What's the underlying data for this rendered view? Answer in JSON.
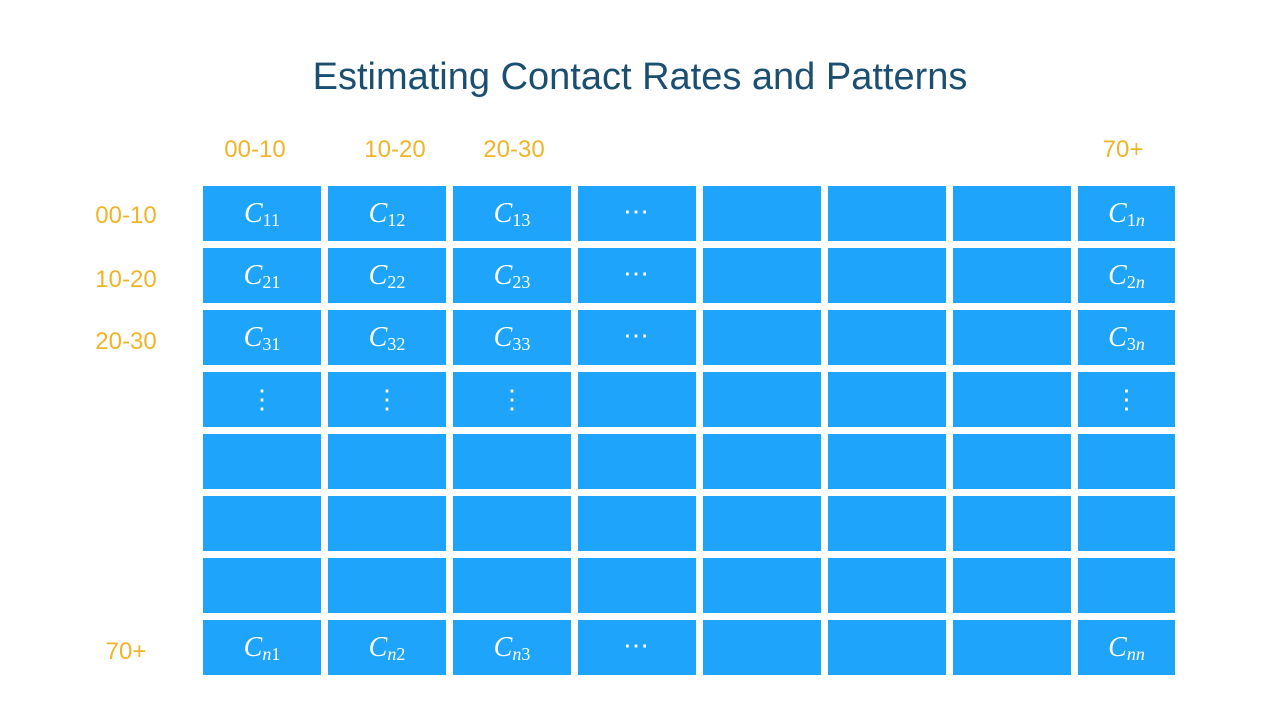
{
  "title": "Estimating Contact Rates and Patterns",
  "column_labels": [
    "00-10",
    "10-20",
    "20-30",
    "70+"
  ],
  "row_labels": [
    "00-10",
    "10-20",
    "20-30",
    "70+"
  ],
  "matrix_symbol": "C",
  "matrix": [
    [
      {
        "sub": "11"
      },
      {
        "sub": "12"
      },
      {
        "sub": "13"
      },
      {
        "glyph": "⋯"
      },
      {},
      {},
      {},
      {
        "sub": "1",
        "sub_italic": "n"
      }
    ],
    [
      {
        "sub": "21"
      },
      {
        "sub": "22"
      },
      {
        "sub": "23"
      },
      {
        "glyph": "⋯"
      },
      {},
      {},
      {},
      {
        "sub": "2",
        "sub_italic": "n"
      }
    ],
    [
      {
        "sub": "31"
      },
      {
        "sub": "32"
      },
      {
        "sub": "33"
      },
      {
        "glyph": "⋯"
      },
      {},
      {},
      {},
      {
        "sub": "3",
        "sub_italic": "n"
      }
    ],
    [
      {
        "glyph": "⋮"
      },
      {
        "glyph": "⋮"
      },
      {
        "glyph": "⋮"
      },
      {},
      {},
      {},
      {},
      {
        "glyph": "⋮"
      }
    ],
    [
      {},
      {},
      {},
      {},
      {},
      {},
      {},
      {}
    ],
    [
      {},
      {},
      {},
      {},
      {},
      {},
      {},
      {}
    ],
    [
      {},
      {},
      {},
      {},
      {},
      {},
      {},
      {}
    ],
    [
      {
        "sub_italic": "n",
        "sub": "1"
      },
      {
        "sub_italic": "n",
        "sub": "2"
      },
      {
        "sub_italic": "n",
        "sub": "3"
      },
      {
        "glyph": "⋯"
      },
      {},
      {},
      {},
      {
        "sub_italic": "nn"
      }
    ]
  ],
  "colors": {
    "title": "#1b4f72",
    "labels": "#f0b429",
    "cell": "#1ea5fb",
    "cell_text": "#ffffff"
  }
}
